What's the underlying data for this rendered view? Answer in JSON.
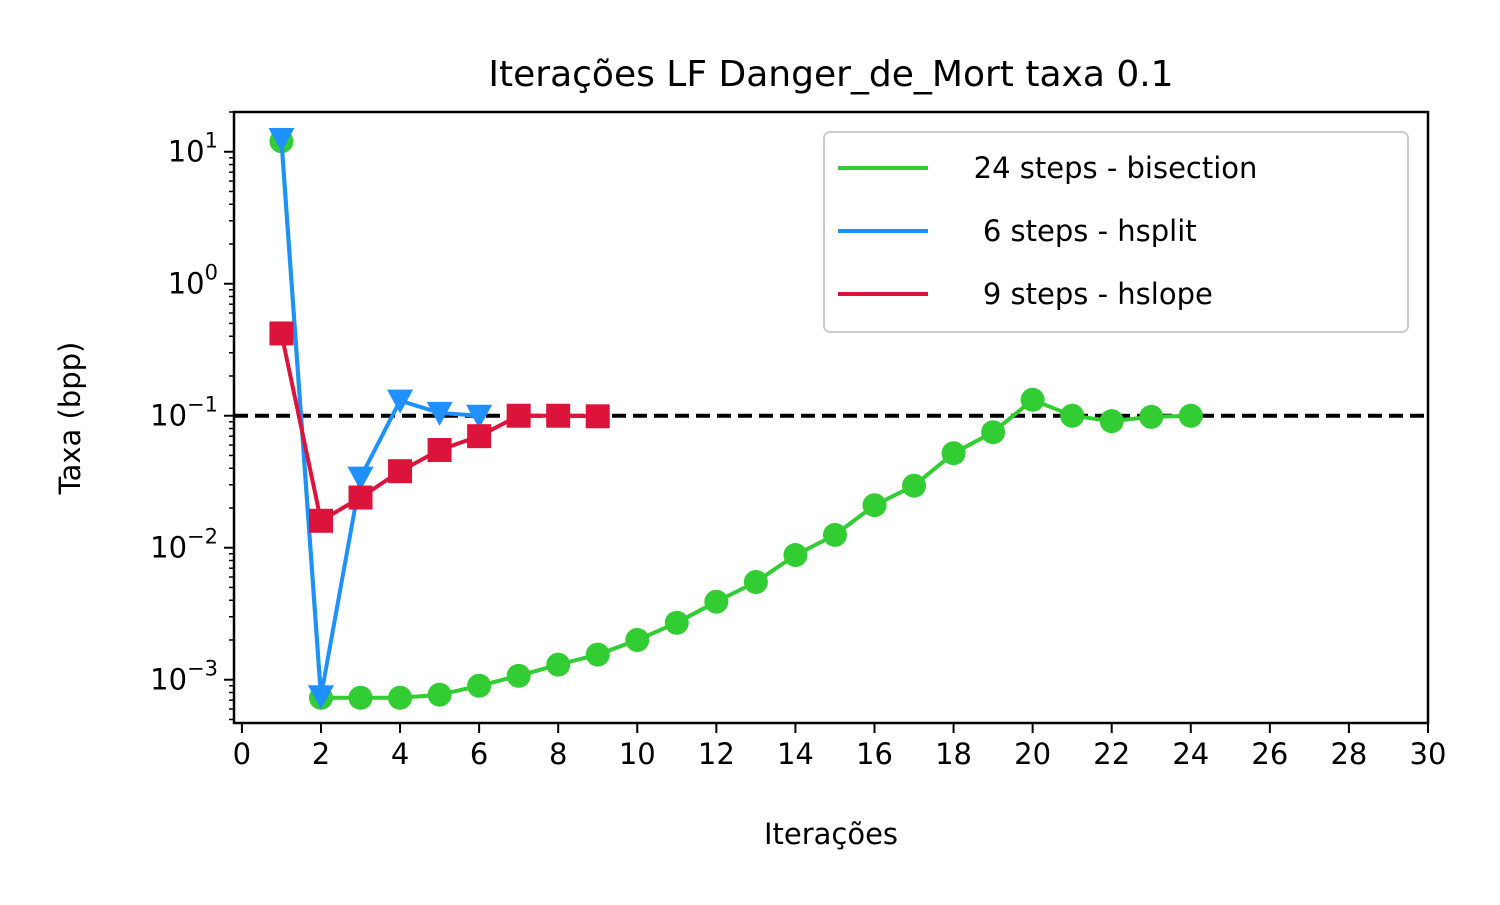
{
  "chart_data": {
    "type": "line",
    "title": "Iterações LF Danger_de_Mort taxa 0.1",
    "xlabel": "Iterações",
    "ylabel": "Taxa (bpp)",
    "xscale": "linear",
    "yscale": "log",
    "xlim": [
      -0.2,
      30
    ],
    "ylim": [
      0.00047,
      20
    ],
    "xticks": [
      0,
      2,
      4,
      6,
      8,
      10,
      12,
      14,
      16,
      18,
      20,
      22,
      24,
      26,
      28,
      30
    ],
    "xtick_labels": [
      "0",
      "2",
      "4",
      "6",
      "8",
      "10",
      "12",
      "14",
      "16",
      "18",
      "20",
      "22",
      "24",
      "26",
      "28",
      "30"
    ],
    "yticks": [
      10,
      1,
      0.1,
      0.01,
      0.001
    ],
    "ytick_labels": [
      {
        "base": "10",
        "exp": "1"
      },
      {
        "base": "10",
        "exp": "0"
      },
      {
        "base": "10",
        "exp": "−1"
      },
      {
        "base": "10",
        "exp": "−2"
      },
      {
        "base": "10",
        "exp": "−3"
      }
    ],
    "grid": false,
    "legend_position": "top-right",
    "reference_line": {
      "y": 0.1,
      "style": "dashed",
      "color": "#000000"
    },
    "series": [
      {
        "name": "24 steps - bisection",
        "color": "#32cd32",
        "marker": "circle",
        "x": [
          1,
          2,
          3,
          4,
          5,
          6,
          7,
          8,
          9,
          10,
          11,
          12,
          13,
          14,
          15,
          16,
          17,
          18,
          19,
          20,
          21,
          22,
          23,
          24
        ],
        "y": [
          12,
          0.00073,
          0.00073,
          0.00073,
          0.00077,
          0.0009,
          0.00107,
          0.0013,
          0.00155,
          0.002,
          0.0027,
          0.0039,
          0.0055,
          0.0088,
          0.0125,
          0.021,
          0.0295,
          0.052,
          0.075,
          0.132,
          0.1,
          0.091,
          0.098,
          0.1
        ]
      },
      {
        "name": "6 steps - hsplit",
        "color": "#1e90ff",
        "marker": "triangle-down",
        "x": [
          1,
          2,
          3,
          4,
          5,
          6
        ],
        "y": [
          12.5,
          0.00075,
          0.034,
          0.13,
          0.105,
          0.1
        ]
      },
      {
        "name": "9 steps - hslope",
        "color": "#dc143c",
        "marker": "square",
        "x": [
          1,
          2,
          3,
          4,
          5,
          6,
          7,
          8,
          9
        ],
        "y": [
          0.42,
          0.016,
          0.024,
          0.038,
          0.055,
          0.07,
          0.1,
          0.1,
          0.099
        ]
      }
    ],
    "legend": [
      {
        "label": "   24 steps - bisection",
        "color": "#32cd32"
      },
      {
        "label": "    6 steps - hsplit",
        "color": "#1e90ff"
      },
      {
        "label": "    9 steps - hslope",
        "color": "#dc143c"
      }
    ]
  }
}
